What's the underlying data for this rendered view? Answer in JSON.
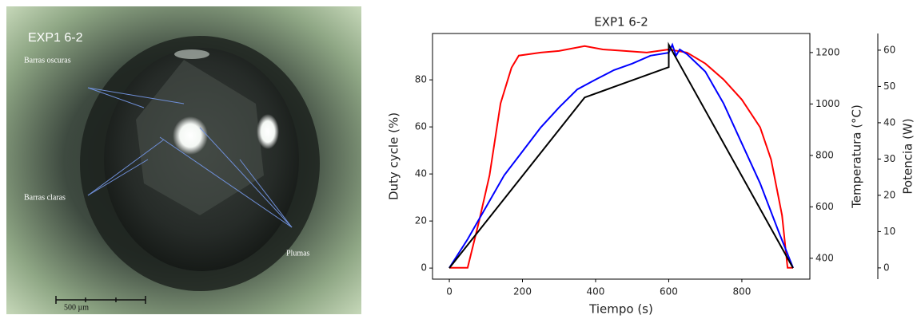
{
  "image": {
    "title": "EXP1 6-2",
    "annotations": [
      "Barras oscuras",
      "Barras claras",
      "Plumas"
    ],
    "scale_bar": "500 µm"
  },
  "chart_data": {
    "type": "line",
    "title": "EXP1 6-2",
    "xlabel": "Tiempo (s)",
    "ylabel": "Duty cycle (%)",
    "y2label": "Temperatura (°C)",
    "y3label": "Potencia (W)",
    "xlim": [
      -46,
      986
    ],
    "xticks": [
      0,
      200,
      400,
      600,
      800
    ],
    "ylim": [
      -4.7,
      99.7
    ],
    "yticks": [
      0,
      20,
      40,
      60,
      80
    ],
    "y2lim": [
      319,
      1274
    ],
    "y2ticks": [
      400,
      600,
      800,
      1000,
      1200
    ],
    "y3lim": [
      -3.1,
      64.6
    ],
    "y3ticks": [
      0,
      10,
      20,
      30,
      40,
      50,
      60
    ],
    "series": [
      {
        "color": "#ff0000",
        "axis": "y2",
        "x": [
          0,
          50,
          80,
          110,
          140,
          170,
          190,
          250,
          300,
          370,
          420,
          480,
          540,
          600,
          650,
          700,
          750,
          800,
          850,
          880,
          910,
          925,
          940
        ],
        "values": [
          363,
          363,
          536,
          722,
          1002,
          1141,
          1188,
          1200,
          1206,
          1225,
          1212,
          1206,
          1200,
          1212,
          1200,
          1157,
          1095,
          1017,
          909,
          784,
          567,
          363,
          363
        ]
      },
      {
        "color": "#0000ff",
        "axis": "y3",
        "x": [
          0,
          50,
          100,
          150,
          200,
          250,
          300,
          350,
          400,
          450,
          500,
          550,
          600,
          610,
          620,
          630,
          650,
          700,
          750,
          800,
          850,
          900,
          940
        ],
        "values": [
          0,
          7.9,
          16.7,
          25.5,
          32.1,
          38.7,
          44.2,
          49.2,
          51.9,
          54.5,
          56.3,
          58.5,
          59.3,
          61.5,
          58.5,
          60.2,
          58.9,
          54.1,
          45.3,
          34.3,
          23.3,
          10.1,
          0
        ]
      },
      {
        "color": "#000000",
        "axis": "y",
        "x": [
          0,
          370,
          600,
          600,
          940
        ],
        "values": [
          0,
          72.5,
          85.4,
          94.9,
          0
        ]
      }
    ]
  }
}
